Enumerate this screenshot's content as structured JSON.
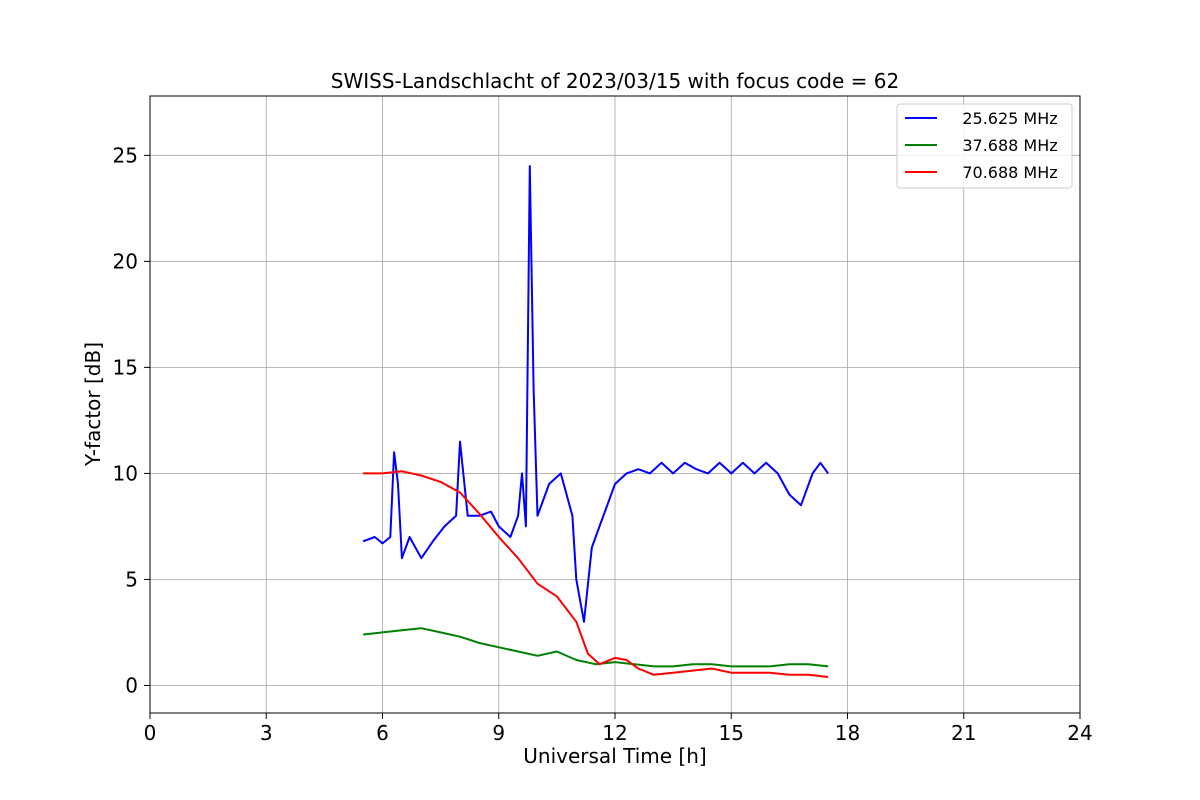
{
  "chart_data": {
    "type": "line",
    "title": "SWISS-Landschlacht of 2023/03/15 with focus code = 62",
    "xlabel": "Universal Time [h]",
    "ylabel": "Y-factor [dB]",
    "xlim": [
      0,
      24
    ],
    "ylim": [
      -1.3,
      27.8
    ],
    "xticks": [
      0,
      3,
      6,
      9,
      12,
      15,
      18,
      21,
      24
    ],
    "yticks": [
      0,
      5,
      10,
      15,
      20,
      25
    ],
    "grid": true,
    "legend_position": "top-right",
    "series": [
      {
        "name": "25.625 MHz",
        "color": "#0000ff",
        "points": [
          [
            5.5,
            6.8
          ],
          [
            5.8,
            7.0
          ],
          [
            6.0,
            6.7
          ],
          [
            6.2,
            7.0
          ],
          [
            6.3,
            11.0
          ],
          [
            6.4,
            9.5
          ],
          [
            6.5,
            6.0
          ],
          [
            6.7,
            7.0
          ],
          [
            7.0,
            6.0
          ],
          [
            7.3,
            6.8
          ],
          [
            7.6,
            7.5
          ],
          [
            7.9,
            8.0
          ],
          [
            8.0,
            11.5
          ],
          [
            8.2,
            8.0
          ],
          [
            8.5,
            8.0
          ],
          [
            8.8,
            8.2
          ],
          [
            9.0,
            7.5
          ],
          [
            9.3,
            7.0
          ],
          [
            9.5,
            8.0
          ],
          [
            9.6,
            10.0
          ],
          [
            9.7,
            7.5
          ],
          [
            9.8,
            24.5
          ],
          [
            9.9,
            14.0
          ],
          [
            10.0,
            8.0
          ],
          [
            10.3,
            9.5
          ],
          [
            10.6,
            10.0
          ],
          [
            10.9,
            8.0
          ],
          [
            11.0,
            5.0
          ],
          [
            11.2,
            3.0
          ],
          [
            11.4,
            6.5
          ],
          [
            11.6,
            7.5
          ],
          [
            11.8,
            8.5
          ],
          [
            12.0,
            9.5
          ],
          [
            12.3,
            10.0
          ],
          [
            12.6,
            10.2
          ],
          [
            12.9,
            10.0
          ],
          [
            13.2,
            10.5
          ],
          [
            13.5,
            10.0
          ],
          [
            13.8,
            10.5
          ],
          [
            14.1,
            10.2
          ],
          [
            14.4,
            10.0
          ],
          [
            14.7,
            10.5
          ],
          [
            15.0,
            10.0
          ],
          [
            15.3,
            10.5
          ],
          [
            15.6,
            10.0
          ],
          [
            15.9,
            10.5
          ],
          [
            16.2,
            10.0
          ],
          [
            16.5,
            9.0
          ],
          [
            16.8,
            8.5
          ],
          [
            17.1,
            10.0
          ],
          [
            17.3,
            10.5
          ],
          [
            17.5,
            10.0
          ]
        ]
      },
      {
        "name": "37.688 MHz",
        "color": "#008000",
        "points": [
          [
            5.5,
            2.4
          ],
          [
            6.0,
            2.5
          ],
          [
            6.5,
            2.6
          ],
          [
            7.0,
            2.7
          ],
          [
            7.5,
            2.5
          ],
          [
            8.0,
            2.3
          ],
          [
            8.5,
            2.0
          ],
          [
            9.0,
            1.8
          ],
          [
            9.5,
            1.6
          ],
          [
            10.0,
            1.4
          ],
          [
            10.5,
            1.6
          ],
          [
            11.0,
            1.2
          ],
          [
            11.5,
            1.0
          ],
          [
            12.0,
            1.1
          ],
          [
            12.5,
            1.0
          ],
          [
            13.0,
            0.9
          ],
          [
            13.5,
            0.9
          ],
          [
            14.0,
            1.0
          ],
          [
            14.5,
            1.0
          ],
          [
            15.0,
            0.9
          ],
          [
            15.5,
            0.9
          ],
          [
            16.0,
            0.9
          ],
          [
            16.5,
            1.0
          ],
          [
            17.0,
            1.0
          ],
          [
            17.5,
            0.9
          ]
        ]
      },
      {
        "name": "70.688 MHz",
        "color": "#ff0000",
        "points": [
          [
            5.5,
            10.0
          ],
          [
            6.0,
            10.0
          ],
          [
            6.5,
            10.1
          ],
          [
            7.0,
            9.9
          ],
          [
            7.5,
            9.6
          ],
          [
            8.0,
            9.1
          ],
          [
            8.5,
            8.1
          ],
          [
            9.0,
            7.0
          ],
          [
            9.5,
            6.0
          ],
          [
            10.0,
            4.8
          ],
          [
            10.5,
            4.2
          ],
          [
            11.0,
            3.0
          ],
          [
            11.3,
            1.5
          ],
          [
            11.6,
            1.0
          ],
          [
            12.0,
            1.3
          ],
          [
            12.3,
            1.2
          ],
          [
            12.6,
            0.8
          ],
          [
            13.0,
            0.5
          ],
          [
            13.5,
            0.6
          ],
          [
            14.0,
            0.7
          ],
          [
            14.5,
            0.8
          ],
          [
            15.0,
            0.6
          ],
          [
            15.5,
            0.6
          ],
          [
            16.0,
            0.6
          ],
          [
            16.5,
            0.5
          ],
          [
            17.0,
            0.5
          ],
          [
            17.5,
            0.4
          ]
        ]
      }
    ]
  }
}
